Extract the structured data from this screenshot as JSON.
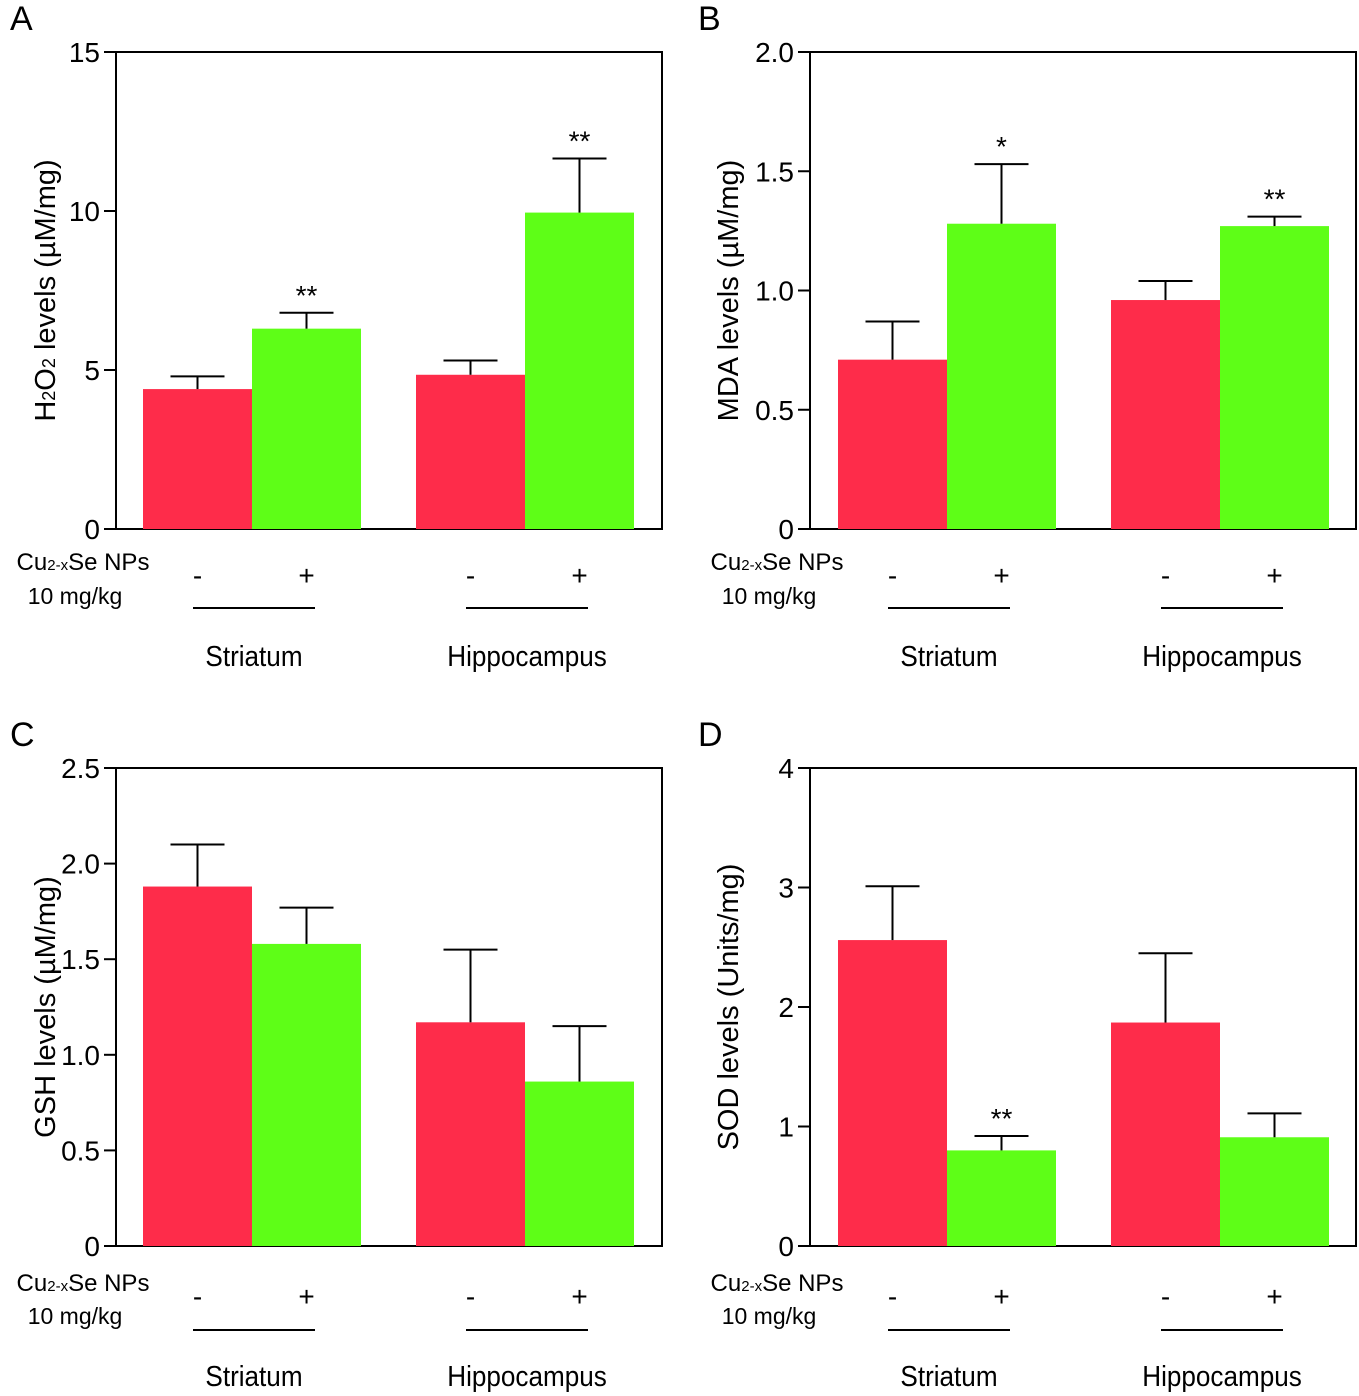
{
  "colors": {
    "control": "#fe2c4a",
    "treated": "#5efe17",
    "axis": "#000000",
    "background": "#ffffff"
  },
  "chart_data": [
    {
      "panel": "A",
      "type": "bar",
      "ylabel_parts": [
        {
          "text": "H",
          "size": "big"
        },
        {
          "text": "2",
          "size": "small"
        },
        {
          "text": "O",
          "size": "big"
        },
        {
          "text": "2",
          "size": "small"
        },
        {
          "text": " levels (µM/mg)",
          "size": "big"
        }
      ],
      "ylim": [
        0,
        15
      ],
      "yticks": [
        "0",
        "5",
        "10",
        "15"
      ],
      "ytick_values": [
        0,
        5,
        10,
        15
      ],
      "treatment_label_parts": [
        {
          "text": "Cu",
          "size": "big"
        },
        {
          "text": "2-x",
          "size": "small"
        },
        {
          "text": "Se NPs",
          "size": "big"
        }
      ],
      "dose_label": "10 mg/kg",
      "groups": [
        {
          "name": "Striatum",
          "bars": [
            {
              "sign": "-",
              "value": 4.4,
              "error": 0.4,
              "sig": ""
            },
            {
              "sign": "+",
              "value": 6.3,
              "error": 0.5,
              "sig": "**"
            }
          ]
        },
        {
          "name": "Hippocampus",
          "bars": [
            {
              "sign": "-",
              "value": 4.85,
              "error": 0.45,
              "sig": ""
            },
            {
              "sign": "+",
              "value": 9.95,
              "error": 1.7,
              "sig": "**"
            }
          ]
        }
      ]
    },
    {
      "panel": "B",
      "type": "bar",
      "ylabel_parts": [
        {
          "text": "MDA levels (µM/mg)",
          "size": "big"
        }
      ],
      "ylim": [
        0,
        2.0
      ],
      "yticks": [
        "0",
        "0.5",
        "1.0",
        "1.5",
        "2.0"
      ],
      "ytick_values": [
        0,
        0.5,
        1.0,
        1.5,
        2.0
      ],
      "treatment_label_parts": [
        {
          "text": "Cu",
          "size": "big"
        },
        {
          "text": "2-x",
          "size": "small"
        },
        {
          "text": "Se NPs",
          "size": "big"
        }
      ],
      "dose_label": "10 mg/kg",
      "groups": [
        {
          "name": "Striatum",
          "bars": [
            {
              "sign": "-",
              "value": 0.71,
              "error": 0.16,
              "sig": ""
            },
            {
              "sign": "+",
              "value": 1.28,
              "error": 0.25,
              "sig": "*"
            }
          ]
        },
        {
          "name": "Hippocampus",
          "bars": [
            {
              "sign": "-",
              "value": 0.96,
              "error": 0.08,
              "sig": ""
            },
            {
              "sign": "+",
              "value": 1.27,
              "error": 0.04,
              "sig": "**"
            }
          ]
        }
      ]
    },
    {
      "panel": "C",
      "type": "bar",
      "ylabel_parts": [
        {
          "text": "GSH levels (µM/mg)",
          "size": "big"
        }
      ],
      "ylim": [
        0,
        2.5
      ],
      "yticks": [
        "0",
        "0.5",
        "1.0",
        "1.5",
        "2.0",
        "2.5"
      ],
      "ytick_values": [
        0,
        0.5,
        1.0,
        1.5,
        2.0,
        2.5
      ],
      "treatment_label_parts": [
        {
          "text": "Cu",
          "size": "big"
        },
        {
          "text": "2-x",
          "size": "small"
        },
        {
          "text": "Se NPs",
          "size": "big"
        }
      ],
      "dose_label": "10 mg/kg",
      "groups": [
        {
          "name": "Striatum",
          "bars": [
            {
              "sign": "-",
              "value": 1.88,
              "error": 0.22,
              "sig": ""
            },
            {
              "sign": "+",
              "value": 1.58,
              "error": 0.19,
              "sig": ""
            }
          ]
        },
        {
          "name": "Hippocampus",
          "bars": [
            {
              "sign": "-",
              "value": 1.17,
              "error": 0.38,
              "sig": ""
            },
            {
              "sign": "+",
              "value": 0.86,
              "error": 0.29,
              "sig": ""
            }
          ]
        }
      ]
    },
    {
      "panel": "D",
      "type": "bar",
      "ylabel_parts": [
        {
          "text": "SOD levels (Units/mg)",
          "size": "big"
        }
      ],
      "ylim": [
        0,
        4
      ],
      "yticks": [
        "0",
        "1",
        "2",
        "3",
        "4"
      ],
      "ytick_values": [
        0,
        1,
        2,
        3,
        4
      ],
      "treatment_label_parts": [
        {
          "text": "Cu",
          "size": "big"
        },
        {
          "text": "2-x",
          "size": "small"
        },
        {
          "text": "Se NPs",
          "size": "big"
        }
      ],
      "dose_label": "10 mg/kg",
      "groups": [
        {
          "name": "Striatum",
          "bars": [
            {
              "sign": "-",
              "value": 2.56,
              "error": 0.45,
              "sig": ""
            },
            {
              "sign": "+",
              "value": 0.8,
              "error": 0.12,
              "sig": "**"
            }
          ]
        },
        {
          "name": "Hippocampus",
          "bars": [
            {
              "sign": "-",
              "value": 1.87,
              "error": 0.58,
              "sig": ""
            },
            {
              "sign": "+",
              "value": 0.91,
              "error": 0.2,
              "sig": ""
            }
          ]
        }
      ]
    }
  ]
}
